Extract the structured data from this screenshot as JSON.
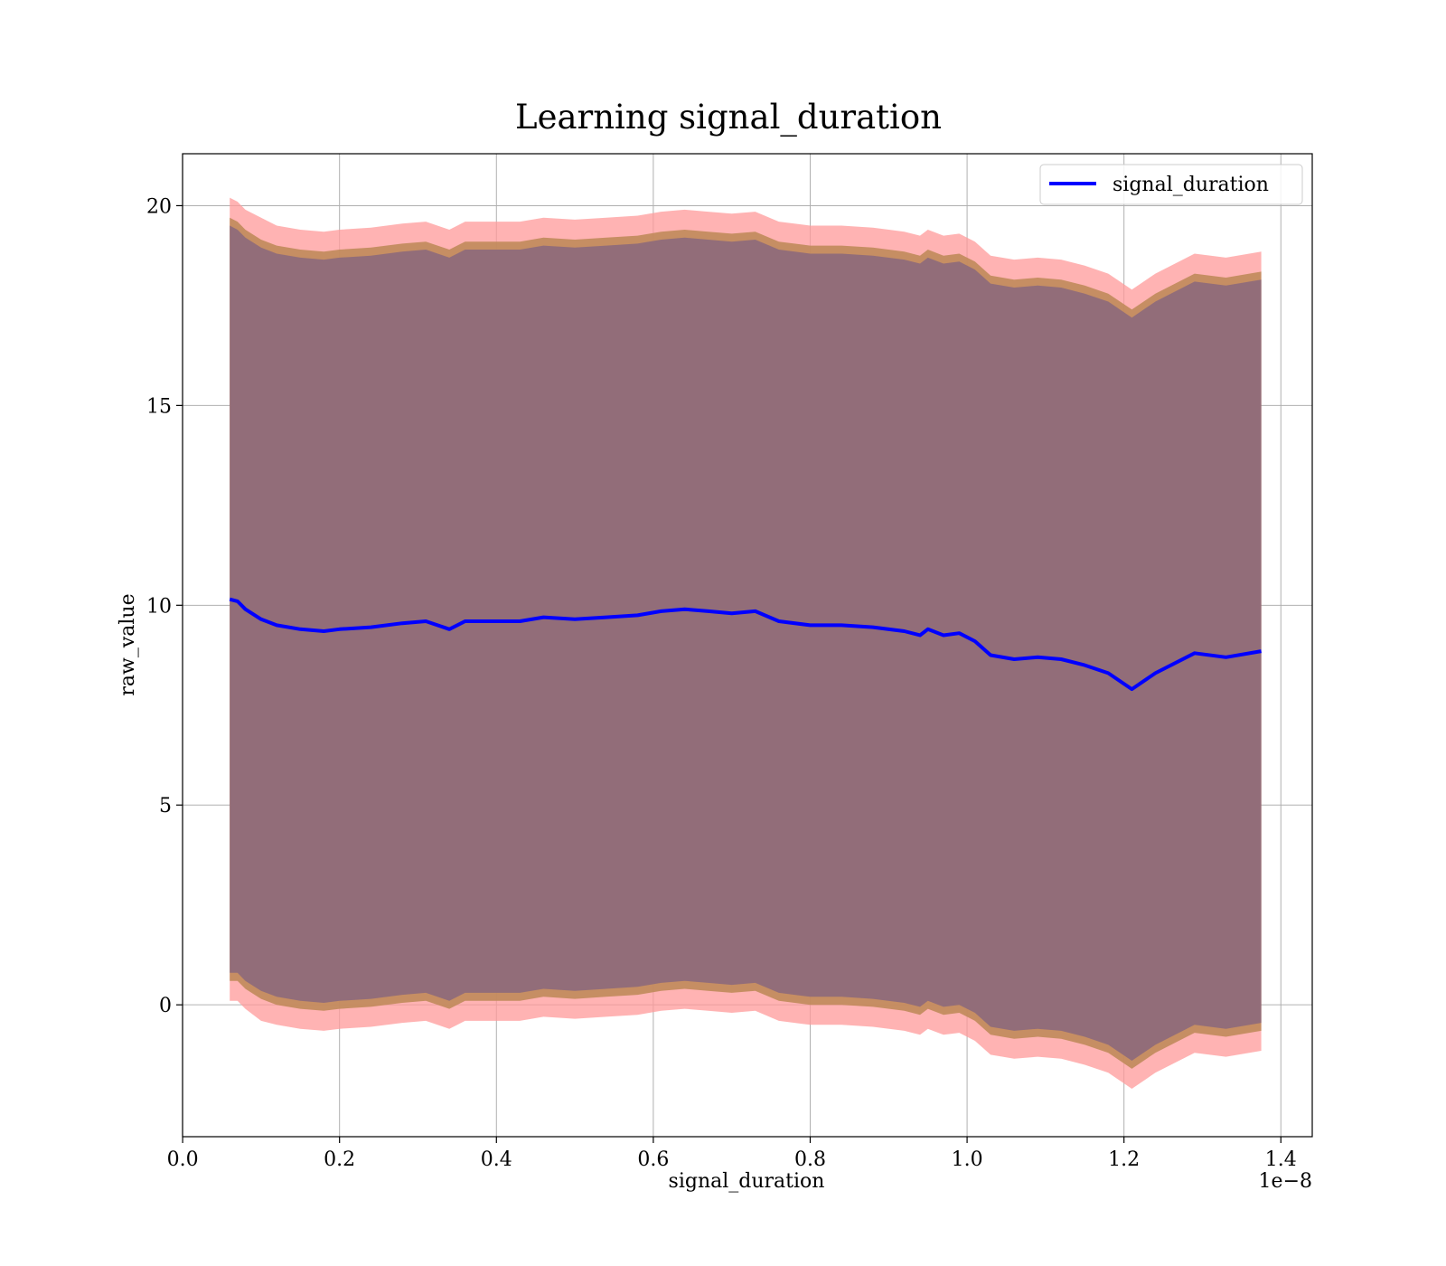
{
  "chart_data": {
    "type": "line",
    "title": "Learning signal_duration",
    "xlabel": "signal_duration",
    "ylabel": "raw_value",
    "x_offset_label": "1e−8",
    "xlim": [
      -1e-12,
      1.44e-08
    ],
    "ylim": [
      -3.3,
      21.3
    ],
    "x_ticks": [
      0.0,
      2e-09,
      4e-09,
      6e-09,
      8e-09,
      1e-08,
      1.2e-08,
      1.4e-08
    ],
    "x_tick_labels": [
      "0.0",
      "0.2",
      "0.4",
      "0.6",
      "0.8",
      "1.0",
      "1.2",
      "1.4"
    ],
    "y_ticks": [
      0,
      5,
      10,
      15,
      20
    ],
    "y_tick_labels": [
      "0",
      "5",
      "10",
      "15",
      "20"
    ],
    "grid": true,
    "legend_position": "top-right",
    "colors": {
      "line": "#0000ff",
      "outer_band": "#ff9999",
      "middle_band": "#c08a5a",
      "inner_band": "#8f6b7a"
    },
    "series": [
      {
        "name": "signal_duration",
        "x": [
          6e-10,
          7e-10,
          8e-10,
          1e-09,
          1.2e-09,
          1.5e-09,
          1.8e-09,
          2e-09,
          2.4e-09,
          2.8e-09,
          3.1e-09,
          3.4e-09,
          3.6e-09,
          4e-09,
          4.3e-09,
          4.6e-09,
          5e-09,
          5.4e-09,
          5.8e-09,
          6.1e-09,
          6.4e-09,
          6.7e-09,
          7e-09,
          7.3e-09,
          7.6e-09,
          8e-09,
          8.4e-09,
          8.8e-09,
          9.2e-09,
          9.4e-09,
          9.5e-09,
          9.7e-09,
          9.9e-09,
          1.01e-08,
          1.03e-08,
          1.06e-08,
          1.09e-08,
          1.12e-08,
          1.15e-08,
          1.18e-08,
          1.21e-08,
          1.24e-08,
          1.29e-08,
          1.33e-08,
          1.375e-08
        ],
        "values": [
          10.15,
          10.1,
          9.9,
          9.65,
          9.5,
          9.4,
          9.35,
          9.4,
          9.45,
          9.55,
          9.6,
          9.4,
          9.6,
          9.6,
          9.6,
          9.7,
          9.65,
          9.7,
          9.75,
          9.85,
          9.9,
          9.85,
          9.8,
          9.85,
          9.6,
          9.5,
          9.5,
          9.45,
          9.35,
          9.25,
          9.4,
          9.25,
          9.3,
          9.1,
          8.75,
          8.65,
          8.7,
          8.65,
          8.5,
          8.3,
          7.9,
          8.3,
          8.8,
          8.7,
          8.85
        ]
      }
    ],
    "bands": [
      {
        "label": "outer",
        "x": [
          6e-10,
          7e-10,
          8e-10,
          1e-09,
          1.2e-09,
          1.5e-09,
          1.8e-09,
          2e-09,
          2.4e-09,
          2.8e-09,
          3.1e-09,
          3.4e-09,
          3.6e-09,
          4e-09,
          4.3e-09,
          4.6e-09,
          5e-09,
          5.4e-09,
          5.8e-09,
          6.1e-09,
          6.4e-09,
          6.7e-09,
          7e-09,
          7.3e-09,
          7.6e-09,
          8e-09,
          8.4e-09,
          8.8e-09,
          9.2e-09,
          9.4e-09,
          9.5e-09,
          9.7e-09,
          9.9e-09,
          1.01e-08,
          1.03e-08,
          1.06e-08,
          1.09e-08,
          1.12e-08,
          1.15e-08,
          1.18e-08,
          1.21e-08,
          1.24e-08,
          1.29e-08,
          1.33e-08,
          1.375e-08
        ],
        "upper": [
          20.2,
          20.1,
          19.9,
          19.7,
          19.5,
          19.4,
          19.35,
          19.4,
          19.45,
          19.55,
          19.6,
          19.4,
          19.6,
          19.6,
          19.6,
          19.7,
          19.65,
          19.7,
          19.75,
          19.85,
          19.9,
          19.85,
          19.8,
          19.85,
          19.6,
          19.5,
          19.5,
          19.45,
          19.35,
          19.25,
          19.4,
          19.25,
          19.3,
          19.1,
          18.75,
          18.65,
          18.7,
          18.65,
          18.5,
          18.3,
          17.9,
          18.3,
          18.8,
          18.7,
          18.85
        ],
        "lower": [
          0.1,
          0.1,
          -0.1,
          -0.4,
          -0.5,
          -0.6,
          -0.65,
          -0.6,
          -0.55,
          -0.45,
          -0.4,
          -0.6,
          -0.4,
          -0.4,
          -0.4,
          -0.3,
          -0.35,
          -0.3,
          -0.25,
          -0.15,
          -0.1,
          -0.15,
          -0.2,
          -0.15,
          -0.4,
          -0.5,
          -0.5,
          -0.55,
          -0.65,
          -0.75,
          -0.6,
          -0.75,
          -0.7,
          -0.9,
          -1.25,
          -1.35,
          -1.3,
          -1.35,
          -1.5,
          -1.7,
          -2.1,
          -1.7,
          -1.2,
          -1.3,
          -1.15
        ]
      },
      {
        "label": "middle",
        "x": [
          6e-10,
          7e-10,
          8e-10,
          1e-09,
          1.2e-09,
          1.5e-09,
          1.8e-09,
          2e-09,
          2.4e-09,
          2.8e-09,
          3.1e-09,
          3.4e-09,
          3.6e-09,
          4e-09,
          4.3e-09,
          4.6e-09,
          5e-09,
          5.4e-09,
          5.8e-09,
          6.1e-09,
          6.4e-09,
          6.7e-09,
          7e-09,
          7.3e-09,
          7.6e-09,
          8e-09,
          8.4e-09,
          8.8e-09,
          9.2e-09,
          9.4e-09,
          9.5e-09,
          9.7e-09,
          9.9e-09,
          1.01e-08,
          1.03e-08,
          1.06e-08,
          1.09e-08,
          1.12e-08,
          1.15e-08,
          1.18e-08,
          1.21e-08,
          1.24e-08,
          1.29e-08,
          1.33e-08,
          1.375e-08
        ],
        "upper": [
          19.7,
          19.6,
          19.4,
          19.15,
          19.0,
          18.9,
          18.85,
          18.9,
          18.95,
          19.05,
          19.1,
          18.9,
          19.1,
          19.1,
          19.1,
          19.2,
          19.15,
          19.2,
          19.25,
          19.35,
          19.4,
          19.35,
          19.3,
          19.35,
          19.1,
          19.0,
          19.0,
          18.95,
          18.85,
          18.75,
          18.9,
          18.75,
          18.8,
          18.6,
          18.25,
          18.15,
          18.2,
          18.15,
          18.0,
          17.8,
          17.4,
          17.8,
          18.3,
          18.2,
          18.35
        ],
        "lower": [
          0.6,
          0.6,
          0.4,
          0.15,
          0.0,
          -0.1,
          -0.15,
          -0.1,
          -0.05,
          0.05,
          0.1,
          -0.1,
          0.1,
          0.1,
          0.1,
          0.2,
          0.15,
          0.2,
          0.25,
          0.35,
          0.4,
          0.35,
          0.3,
          0.35,
          0.1,
          0.0,
          0.0,
          -0.05,
          -0.15,
          -0.25,
          -0.1,
          -0.25,
          -0.2,
          -0.4,
          -0.75,
          -0.85,
          -0.8,
          -0.85,
          -1.0,
          -1.2,
          -1.6,
          -1.2,
          -0.7,
          -0.8,
          -0.65
        ]
      },
      {
        "label": "inner",
        "x": [
          6e-10,
          7e-10,
          8e-10,
          1e-09,
          1.2e-09,
          1.5e-09,
          1.8e-09,
          2e-09,
          2.4e-09,
          2.8e-09,
          3.1e-09,
          3.4e-09,
          3.6e-09,
          4e-09,
          4.3e-09,
          4.6e-09,
          5e-09,
          5.4e-09,
          5.8e-09,
          6.1e-09,
          6.4e-09,
          6.7e-09,
          7e-09,
          7.3e-09,
          7.6e-09,
          8e-09,
          8.4e-09,
          8.8e-09,
          9.2e-09,
          9.4e-09,
          9.5e-09,
          9.7e-09,
          9.9e-09,
          1.01e-08,
          1.03e-08,
          1.06e-08,
          1.09e-08,
          1.12e-08,
          1.15e-08,
          1.18e-08,
          1.21e-08,
          1.24e-08,
          1.29e-08,
          1.33e-08,
          1.375e-08
        ],
        "upper": [
          19.5,
          19.4,
          19.2,
          18.95,
          18.8,
          18.7,
          18.65,
          18.7,
          18.75,
          18.85,
          18.9,
          18.7,
          18.9,
          18.9,
          18.9,
          19.0,
          18.95,
          19.0,
          19.05,
          19.15,
          19.2,
          19.15,
          19.1,
          19.15,
          18.9,
          18.8,
          18.8,
          18.75,
          18.65,
          18.55,
          18.7,
          18.55,
          18.6,
          18.4,
          18.05,
          17.95,
          18.0,
          17.95,
          17.8,
          17.6,
          17.2,
          17.6,
          18.1,
          18.0,
          18.15
        ],
        "lower": [
          0.8,
          0.8,
          0.6,
          0.35,
          0.2,
          0.1,
          0.05,
          0.1,
          0.15,
          0.25,
          0.3,
          0.1,
          0.3,
          0.3,
          0.3,
          0.4,
          0.35,
          0.4,
          0.45,
          0.55,
          0.6,
          0.55,
          0.5,
          0.55,
          0.3,
          0.2,
          0.2,
          0.15,
          0.05,
          -0.05,
          0.1,
          -0.05,
          0.0,
          -0.2,
          -0.55,
          -0.65,
          -0.6,
          -0.65,
          -0.8,
          -1.0,
          -1.4,
          -1.0,
          -0.5,
          -0.6,
          -0.45
        ]
      }
    ]
  }
}
